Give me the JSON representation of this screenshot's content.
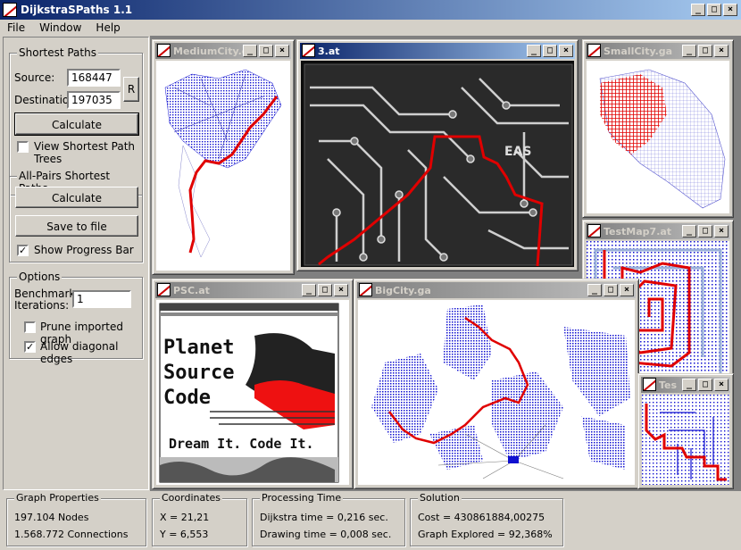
{
  "app": {
    "title": "DijkstraSPaths 1.1"
  },
  "menu": [
    "File",
    "Window",
    "Help"
  ],
  "shortest_paths": {
    "title": "Shortest Paths",
    "source_label": "Source:",
    "source_value": "168447",
    "dest_label": "Destination:",
    "dest_value": "197035",
    "r_button": "R",
    "calculate": "Calculate",
    "view_trees": "View Shortest Path Trees"
  },
  "all_pairs": {
    "title": "All-Pairs Shortest Paths",
    "calculate": "Calculate",
    "save": "Save to file",
    "progress": "Show Progress Bar"
  },
  "options": {
    "title": "Options",
    "bench_label_1": "Benchmark",
    "bench_label_2": "Iterations:",
    "bench_value": "1",
    "prune": "Prune imported graph",
    "diagonal": "Allow diagonal edges"
  },
  "windows": {
    "medium": "MediumCity.ga",
    "three": "3.at",
    "small": "SmallCity.ga",
    "testmap": "TestMap7.at",
    "psc": "PSC.at",
    "big": "BigCity.ga",
    "test": "Test.at"
  },
  "psc_art": {
    "line1": "Planet",
    "line2": "Source",
    "line3": "Code",
    "tagline": "Dream It.  Code It."
  },
  "circuit_label": "EAS",
  "status": {
    "graph": {
      "title": "Graph Properties",
      "nodes": "197.104 Nodes",
      "connections": "1.568.772 Connections"
    },
    "coords": {
      "title": "Coordinates",
      "x": "X = 21,21",
      "y": "Y = 6,553"
    },
    "time": {
      "title": "Processing Time",
      "dijkstra": "Dijkstra time = 0,216 sec.",
      "drawing": "Drawing time = 0,008 sec."
    },
    "solution": {
      "title": "Solution",
      "cost": "Cost = 430861884,00275",
      "explored": "Graph Explored = 92,368%"
    }
  },
  "colors": {
    "title_active": "#0a246a",
    "path": "#e00000",
    "graph": "#1010d0",
    "face": "#d4d0c8"
  }
}
